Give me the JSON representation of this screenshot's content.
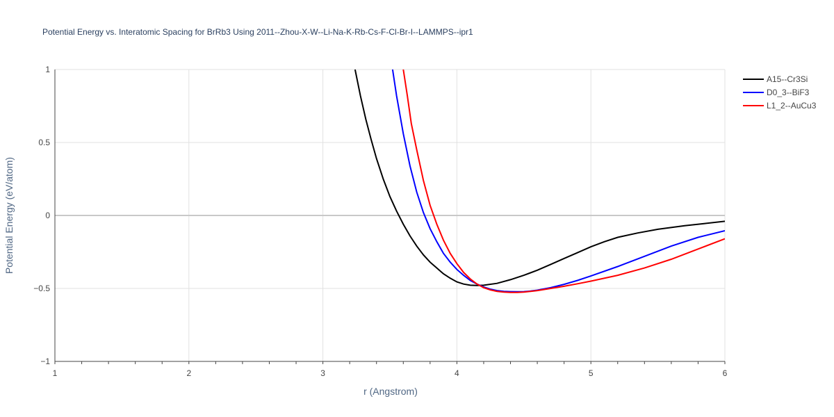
{
  "chart_data": {
    "type": "line",
    "title": "Potential Energy vs. Interatomic Spacing for BrRb3 Using 2011--Zhou-X-W--Li-Na-K-Rb-Cs-F-Cl-Br-I--LAMMPS--ipr1",
    "xlabel": "r (Angstrom)",
    "ylabel": "Potential Energy (eV/atom)",
    "xlim": [
      1,
      6
    ],
    "ylim": [
      -1,
      1
    ],
    "xticks": [
      "1",
      "2",
      "3",
      "4",
      "5",
      "6"
    ],
    "yticks": [
      "−1",
      "−0.5",
      "0",
      "0.5",
      "1"
    ],
    "grid": true,
    "legend_position": "top-right",
    "series": [
      {
        "name": "A15--Cr3Si",
        "color": "#000000",
        "x": [
          3.24,
          3.28,
          3.32,
          3.36,
          3.4,
          3.45,
          3.5,
          3.55,
          3.6,
          3.65,
          3.7,
          3.75,
          3.8,
          3.85,
          3.9,
          3.95,
          4.0,
          4.05,
          4.1,
          4.15,
          4.2,
          4.3,
          4.4,
          4.5,
          4.6,
          4.7,
          4.8,
          4.9,
          5.0,
          5.1,
          5.2,
          5.35,
          5.5,
          5.7,
          5.85,
          6.0
        ],
        "y": [
          1.0,
          0.82,
          0.66,
          0.52,
          0.39,
          0.25,
          0.13,
          0.03,
          -0.06,
          -0.14,
          -0.21,
          -0.27,
          -0.32,
          -0.36,
          -0.4,
          -0.43,
          -0.455,
          -0.47,
          -0.478,
          -0.48,
          -0.478,
          -0.465,
          -0.44,
          -0.41,
          -0.375,
          -0.335,
          -0.295,
          -0.255,
          -0.215,
          -0.18,
          -0.15,
          -0.12,
          -0.095,
          -0.07,
          -0.055,
          -0.04
        ]
      },
      {
        "name": "D0_3--BiF3",
        "color": "#0000ff",
        "x": [
          3.52,
          3.55,
          3.6,
          3.65,
          3.7,
          3.75,
          3.8,
          3.85,
          3.9,
          3.95,
          4.0,
          4.05,
          4.1,
          4.15,
          4.2,
          4.25,
          4.3,
          4.35,
          4.4,
          4.45,
          4.5,
          4.55,
          4.6,
          4.7,
          4.8,
          4.9,
          5.0,
          5.2,
          5.4,
          5.6,
          5.8,
          6.0
        ],
        "y": [
          1.0,
          0.82,
          0.56,
          0.34,
          0.16,
          0.02,
          -0.09,
          -0.18,
          -0.26,
          -0.32,
          -0.37,
          -0.41,
          -0.445,
          -0.47,
          -0.49,
          -0.505,
          -0.515,
          -0.52,
          -0.522,
          -0.523,
          -0.522,
          -0.518,
          -0.512,
          -0.495,
          -0.472,
          -0.445,
          -0.415,
          -0.35,
          -0.28,
          -0.21,
          -0.15,
          -0.105
        ]
      },
      {
        "name": "L1_2--AuCu3",
        "color": "#ff0000",
        "x": [
          3.6,
          3.63,
          3.66,
          3.7,
          3.75,
          3.8,
          3.85,
          3.9,
          3.95,
          4.0,
          4.05,
          4.1,
          4.15,
          4.2,
          4.25,
          4.3,
          4.35,
          4.4,
          4.45,
          4.5,
          4.55,
          4.6,
          4.7,
          4.8,
          4.9,
          5.0,
          5.2,
          5.4,
          5.6,
          5.8,
          6.0
        ],
        "y": [
          1.0,
          0.82,
          0.63,
          0.45,
          0.24,
          0.07,
          -0.06,
          -0.17,
          -0.26,
          -0.33,
          -0.39,
          -0.435,
          -0.47,
          -0.495,
          -0.51,
          -0.52,
          -0.525,
          -0.527,
          -0.527,
          -0.525,
          -0.52,
          -0.515,
          -0.5,
          -0.485,
          -0.468,
          -0.45,
          -0.41,
          -0.36,
          -0.3,
          -0.23,
          -0.16
        ]
      }
    ]
  }
}
